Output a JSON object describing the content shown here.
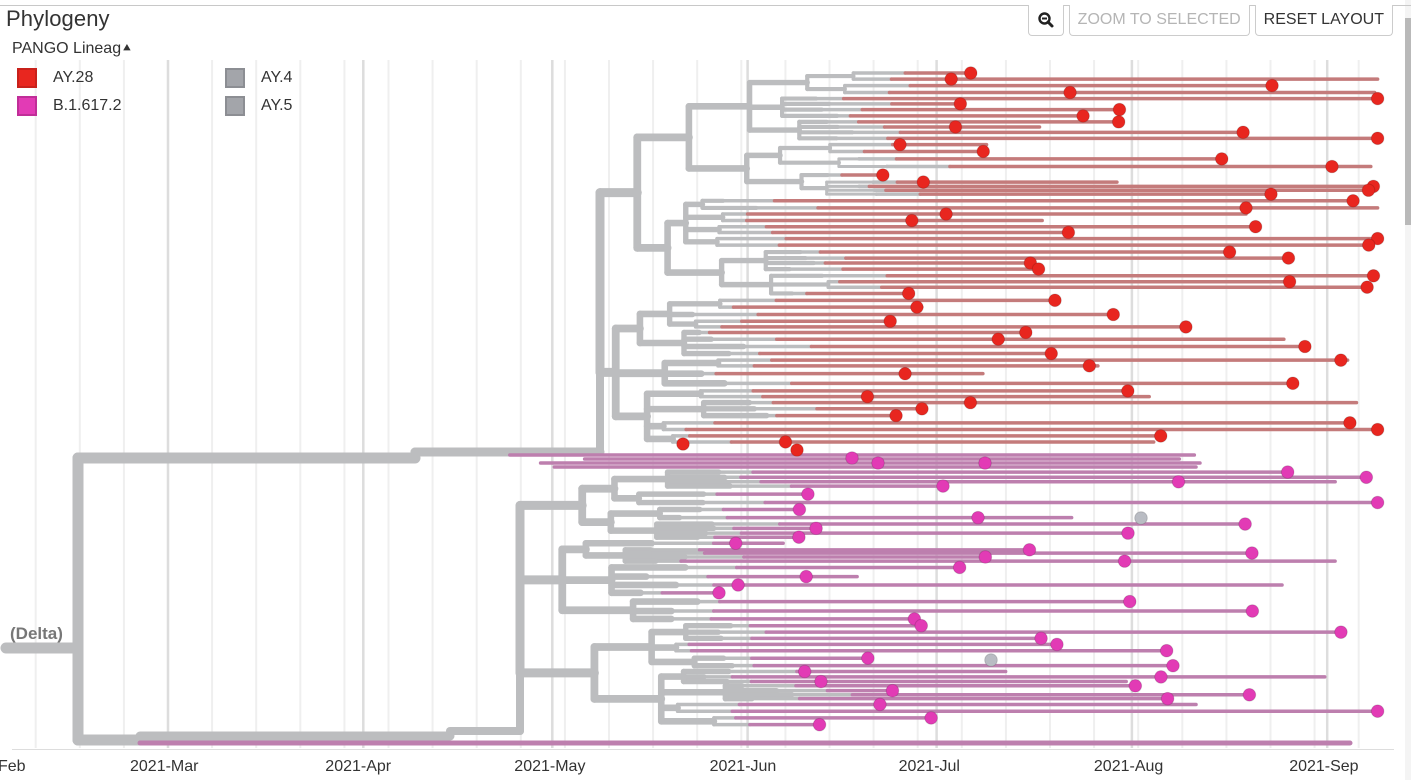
{
  "panel": {
    "title": "Phylogeny",
    "legend_toggle_label": "PANGO Lineag",
    "legend_toggle_icon": "chevron-up-icon"
  },
  "toolbar": {
    "zoom_out_icon": "zoom-out-icon",
    "zoom_to_selected_label": "ZOOM TO SELECTED",
    "reset_layout_label": "RESET LAYOUT"
  },
  "legend": {
    "items": [
      {
        "label": "AY.28",
        "color": "#E8261F",
        "border": "#C8211B"
      },
      {
        "label": "B.1.617.2",
        "color": "#E23BB5",
        "border": "#C02E98"
      },
      {
        "label": "AY.4",
        "color": "#A3A5AA",
        "border": "#8C8E93"
      },
      {
        "label": "AY.5",
        "color": "#A3A5AA",
        "border": "#8C8E93"
      }
    ]
  },
  "tree": {
    "root_label": "(Delta)",
    "colors": {
      "internal_branch": "#BCBDBF",
      "ay28_branch": "#C47B7B",
      "b16172_branch": "#BD7FAE",
      "ay28_tip": "#E8261F",
      "b16172_tip": "#E23BB5",
      "other_tip": "#B9BCC3",
      "gridline_week": "#EFEFEF",
      "gridline_month": "#DDDDDD"
    }
  },
  "x_axis": {
    "ticks": [
      {
        "label": "Feb",
        "date": "2021-02-01"
      },
      {
        "label": "2021-Mar",
        "date": "2021-03-01"
      },
      {
        "label": "2021-Apr",
        "date": "2021-04-01"
      },
      {
        "label": "2021-May",
        "date": "2021-05-01"
      },
      {
        "label": "2021-Jun",
        "date": "2021-06-01"
      },
      {
        "label": "2021-Jul",
        "date": "2021-07-01"
      },
      {
        "label": "2021-Aug",
        "date": "2021-08-01"
      },
      {
        "label": "2021-Sep",
        "date": "2021-09-01"
      }
    ],
    "range": [
      "2021-01-30",
      "2021-09-13"
    ]
  }
}
